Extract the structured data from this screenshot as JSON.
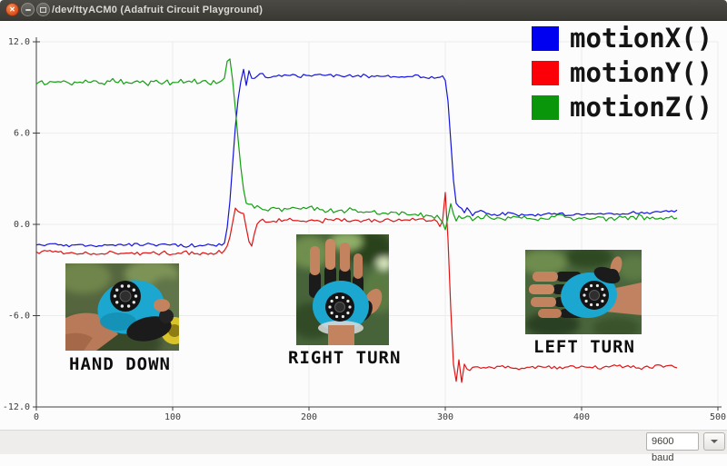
{
  "window": {
    "title": "/dev/ttyACM0 (Adafruit Circuit Playground)"
  },
  "legend": [
    {
      "label": "motionX()",
      "color": "#0000f0"
    },
    {
      "label": "motionY()",
      "color": "#fb0006"
    },
    {
      "label": "motionZ()",
      "color": "#0a960a"
    }
  ],
  "annotations": [
    {
      "label": "HAND DOWN"
    },
    {
      "label": "RIGHT TURN"
    },
    {
      "label": "LEFT TURN"
    }
  ],
  "statusbar": {
    "baud": "9600 baud"
  },
  "chart_data": {
    "type": "line",
    "title": "",
    "xlabel": "",
    "ylabel": "",
    "xlim": [
      0,
      500
    ],
    "ylim": [
      -12,
      12
    ],
    "x_ticks": [
      0,
      100,
      200,
      300,
      400,
      500
    ],
    "x_tick_labels": [
      "0",
      "100",
      "200",
      "300",
      "400",
      "500"
    ],
    "y_ticks": [
      -12,
      -6,
      0,
      6,
      12
    ],
    "y_tick_labels": [
      "-12.0",
      "-6.0",
      "0.0",
      "6.0",
      "12.0"
    ],
    "grid": true,
    "legend_position": "top-right",
    "series": [
      {
        "name": "motionX()",
        "color": "#1414dc",
        "noise": 0.07,
        "keypoints": [
          [
            0,
            -1.3
          ],
          [
            40,
            -1.4
          ],
          [
            80,
            -1.3
          ],
          [
            110,
            -1.4
          ],
          [
            130,
            -1.35
          ],
          [
            138,
            -1.3
          ],
          [
            141,
            0.3
          ],
          [
            144,
            4
          ],
          [
            147,
            7.6
          ],
          [
            150,
            9.4
          ],
          [
            152,
            10.2
          ],
          [
            154,
            9.1
          ],
          [
            156,
            10.1
          ],
          [
            159,
            9.4
          ],
          [
            163,
            9.9
          ],
          [
            170,
            9.7
          ],
          [
            200,
            9.8
          ],
          [
            240,
            9.75
          ],
          [
            270,
            9.7
          ],
          [
            290,
            9.7
          ],
          [
            299,
            9.65
          ],
          [
            301,
            9.2
          ],
          [
            303,
            7
          ],
          [
            305,
            4
          ],
          [
            307,
            1.8
          ],
          [
            309,
            0.9
          ],
          [
            311,
            1.4
          ],
          [
            313,
            0.7
          ],
          [
            316,
            1.1
          ],
          [
            320,
            0.6
          ],
          [
            326,
            0.9
          ],
          [
            334,
            0.6
          ],
          [
            345,
            0.7
          ],
          [
            360,
            0.6
          ],
          [
            375,
            0.7
          ],
          [
            395,
            0.6
          ],
          [
            415,
            0.7
          ],
          [
            435,
            0.7
          ],
          [
            455,
            0.8
          ],
          [
            470,
            0.9
          ]
        ]
      },
      {
        "name": "motionY()",
        "color": "#e01414",
        "noise": 0.09,
        "keypoints": [
          [
            0,
            -1.8
          ],
          [
            35,
            -1.9
          ],
          [
            70,
            -1.85
          ],
          [
            105,
            -1.9
          ],
          [
            135,
            -1.85
          ],
          [
            139,
            -1.7
          ],
          [
            142,
            -0.8
          ],
          [
            145,
            0.6
          ],
          [
            147,
            1.5
          ],
          [
            149,
            0.2
          ],
          [
            151,
            1.4
          ],
          [
            153,
            0.1
          ],
          [
            155,
            -0.6
          ],
          [
            157,
            -1.7
          ],
          [
            159,
            -1.1
          ],
          [
            161,
            -0.1
          ],
          [
            164,
            0.3
          ],
          [
            172,
            0.2
          ],
          [
            185,
            0.3
          ],
          [
            205,
            0.25
          ],
          [
            230,
            0.3
          ],
          [
            255,
            0.25
          ],
          [
            275,
            0.3
          ],
          [
            288,
            0.35
          ],
          [
            294,
            0.25
          ],
          [
            297,
            -0.35
          ],
          [
            299,
            0.7
          ],
          [
            300,
            2.1
          ],
          [
            301,
            0.9
          ],
          [
            302,
            -1
          ],
          [
            304,
            -5.5
          ],
          [
            306,
            -9.2
          ],
          [
            308,
            -10.3
          ],
          [
            310,
            -8.9
          ],
          [
            312,
            -10.4
          ],
          [
            314,
            -9.2
          ],
          [
            317,
            -9.7
          ],
          [
            321,
            -9.3
          ],
          [
            330,
            -9.5
          ],
          [
            342,
            -9.3
          ],
          [
            355,
            -9.5
          ],
          [
            370,
            -9.3
          ],
          [
            385,
            -9.45
          ],
          [
            400,
            -9.3
          ],
          [
            415,
            -9.45
          ],
          [
            430,
            -9.35
          ],
          [
            445,
            -9.4
          ],
          [
            458,
            -9.3
          ],
          [
            470,
            -9.35
          ]
        ]
      },
      {
        "name": "motionZ()",
        "color": "#12a012",
        "noise": 0.12,
        "keypoints": [
          [
            0,
            9.35
          ],
          [
            30,
            9.3
          ],
          [
            60,
            9.4
          ],
          [
            90,
            9.3
          ],
          [
            115,
            9.4
          ],
          [
            130,
            9.3
          ],
          [
            136,
            9.45
          ],
          [
            139,
            9.9
          ],
          [
            141,
            11.5
          ],
          [
            143,
            10.3
          ],
          [
            145,
            8.6
          ],
          [
            147,
            6.6
          ],
          [
            149,
            4.6
          ],
          [
            151,
            2.9
          ],
          [
            153,
            1.7
          ],
          [
            155,
            1.05
          ],
          [
            157,
            1.6
          ],
          [
            159,
            1.0
          ],
          [
            162,
            1.25
          ],
          [
            166,
            0.95
          ],
          [
            174,
            1.1
          ],
          [
            186,
            0.95
          ],
          [
            200,
            1.05
          ],
          [
            215,
            0.9
          ],
          [
            230,
            0.95
          ],
          [
            245,
            0.8
          ],
          [
            258,
            0.75
          ],
          [
            270,
            0.7
          ],
          [
            282,
            0.6
          ],
          [
            290,
            0.55
          ],
          [
            295,
            0.45
          ],
          [
            298,
            0.05
          ],
          [
            300,
            -0.3
          ],
          [
            302,
            0.4
          ],
          [
            304,
            1.4
          ],
          [
            306,
            0.7
          ],
          [
            308,
            0.25
          ],
          [
            310,
            0.6
          ],
          [
            313,
            0.3
          ],
          [
            317,
            0.55
          ],
          [
            322,
            0.3
          ],
          [
            330,
            0.5
          ],
          [
            342,
            0.3
          ],
          [
            355,
            0.5
          ],
          [
            368,
            0.35
          ],
          [
            382,
            0.5
          ],
          [
            396,
            0.35
          ],
          [
            410,
            0.5
          ],
          [
            424,
            0.35
          ],
          [
            438,
            0.5
          ],
          [
            452,
            0.4
          ],
          [
            462,
            0.5
          ],
          [
            470,
            0.45
          ]
        ]
      }
    ]
  }
}
